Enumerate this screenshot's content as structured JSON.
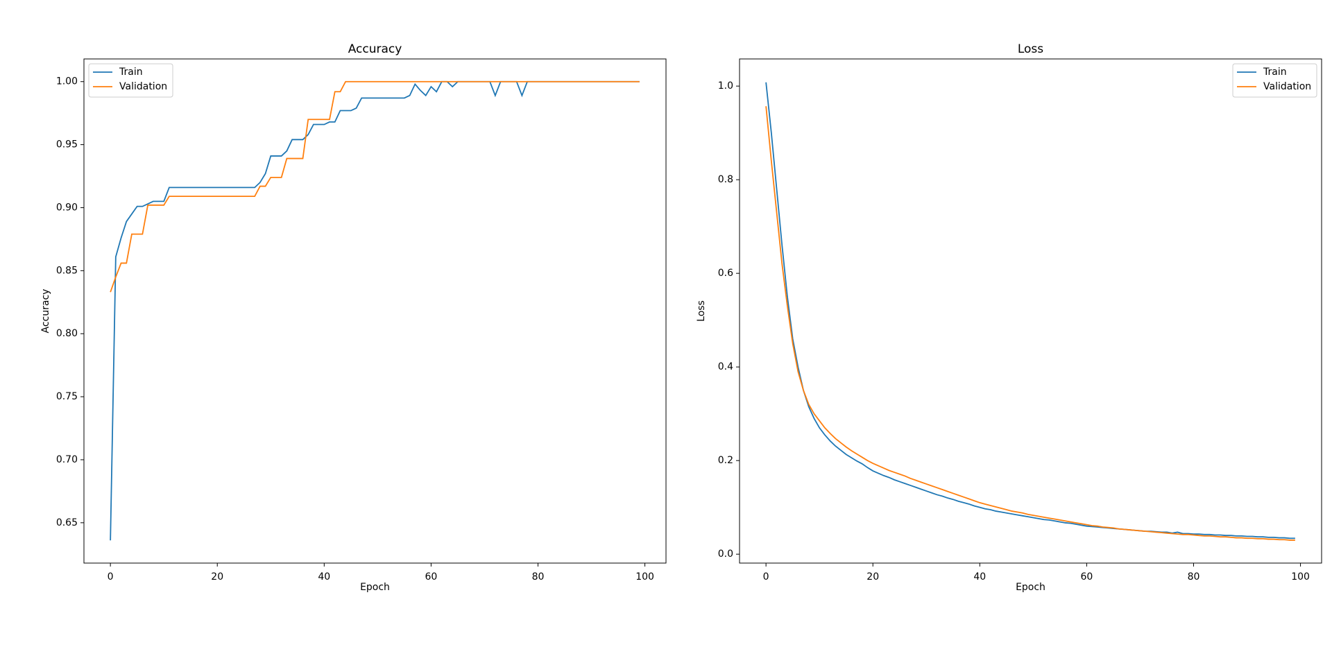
{
  "chart_data": [
    {
      "type": "line",
      "title": "Accuracy",
      "xlabel": "Epoch",
      "ylabel": "Accuracy",
      "x": [
        0,
        1,
        2,
        3,
        4,
        5,
        6,
        7,
        8,
        9,
        10,
        11,
        12,
        13,
        14,
        15,
        16,
        17,
        18,
        19,
        20,
        21,
        22,
        23,
        24,
        25,
        26,
        27,
        28,
        29,
        30,
        31,
        32,
        33,
        34,
        35,
        36,
        37,
        38,
        39,
        40,
        41,
        42,
        43,
        44,
        45,
        46,
        47,
        48,
        49,
        50,
        51,
        52,
        53,
        54,
        55,
        56,
        57,
        58,
        59,
        60,
        61,
        62,
        63,
        64,
        65,
        66,
        67,
        68,
        69,
        70,
        71,
        72,
        73,
        74,
        75,
        76,
        77,
        78,
        79,
        80,
        81,
        82,
        83,
        84,
        85,
        86,
        87,
        88,
        89,
        90,
        91,
        92,
        93,
        94,
        95,
        96,
        97,
        98,
        99
      ],
      "series": [
        {
          "name": "Train",
          "color": "#1f77b4",
          "values": [
            0.636,
            0.861,
            0.876,
            0.889,
            0.895,
            0.901,
            0.901,
            0.903,
            0.905,
            0.905,
            0.905,
            0.916,
            0.916,
            0.916,
            0.916,
            0.916,
            0.916,
            0.916,
            0.916,
            0.916,
            0.916,
            0.916,
            0.916,
            0.916,
            0.916,
            0.916,
            0.916,
            0.916,
            0.92,
            0.927,
            0.941,
            0.941,
            0.941,
            0.945,
            0.954,
            0.954,
            0.954,
            0.958,
            0.966,
            0.966,
            0.966,
            0.968,
            0.968,
            0.977,
            0.977,
            0.977,
            0.979,
            0.987,
            0.987,
            0.987,
            0.987,
            0.987,
            0.987,
            0.987,
            0.987,
            0.987,
            0.989,
            0.998,
            0.993,
            0.989,
            0.996,
            0.992,
            1.0,
            1.0,
            0.996,
            1.0,
            1.0,
            1.0,
            1.0,
            1.0,
            1.0,
            1.0,
            0.989,
            1.0,
            1.0,
            1.0,
            1.0,
            0.989,
            1.0,
            1.0,
            1.0,
            1.0,
            1.0,
            1.0,
            1.0,
            1.0,
            1.0,
            1.0,
            1.0,
            1.0,
            1.0,
            1.0,
            1.0,
            1.0,
            1.0,
            1.0,
            1.0,
            1.0,
            1.0,
            1.0
          ]
        },
        {
          "name": "Validation",
          "color": "#ff7f0e",
          "values": [
            0.833,
            0.845,
            0.856,
            0.856,
            0.879,
            0.879,
            0.879,
            0.902,
            0.902,
            0.902,
            0.902,
            0.909,
            0.909,
            0.909,
            0.909,
            0.909,
            0.909,
            0.909,
            0.909,
            0.909,
            0.909,
            0.909,
            0.909,
            0.909,
            0.909,
            0.909,
            0.909,
            0.909,
            0.917,
            0.917,
            0.924,
            0.924,
            0.924,
            0.939,
            0.939,
            0.939,
            0.939,
            0.97,
            0.97,
            0.97,
            0.97,
            0.97,
            0.992,
            0.992,
            1.0,
            1.0,
            1.0,
            1.0,
            1.0,
            1.0,
            1.0,
            1.0,
            1.0,
            1.0,
            1.0,
            1.0,
            1.0,
            1.0,
            1.0,
            1.0,
            1.0,
            1.0,
            1.0,
            1.0,
            1.0,
            1.0,
            1.0,
            1.0,
            1.0,
            1.0,
            1.0,
            1.0,
            1.0,
            1.0,
            1.0,
            1.0,
            1.0,
            1.0,
            1.0,
            1.0,
            1.0,
            1.0,
            1.0,
            1.0,
            1.0,
            1.0,
            1.0,
            1.0,
            1.0,
            1.0,
            1.0,
            1.0,
            1.0,
            1.0,
            1.0,
            1.0,
            1.0,
            1.0,
            1.0,
            1.0
          ]
        }
      ],
      "xlim": [
        -4.95,
        103.95
      ],
      "ylim": [
        0.618,
        1.018
      ],
      "xticks": [
        0,
        20,
        40,
        60,
        80,
        100
      ],
      "yticks": [
        0.65,
        {
          "value": 0.7,
          "label": "0.70"
        },
        0.75,
        {
          "value": 0.8,
          "label": "0.80"
        },
        0.85,
        {
          "value": 0.9,
          "label": "0.90"
        },
        0.95,
        {
          "value": 1.0,
          "label": "1.00"
        }
      ],
      "legend": "upper left"
    },
    {
      "type": "line",
      "title": "Loss",
      "xlabel": "Epoch",
      "ylabel": "Loss",
      "x": [
        0,
        1,
        2,
        3,
        4,
        5,
        6,
        7,
        8,
        9,
        10,
        11,
        12,
        13,
        14,
        15,
        16,
        17,
        18,
        19,
        20,
        21,
        22,
        23,
        24,
        25,
        26,
        27,
        28,
        29,
        30,
        31,
        32,
        33,
        34,
        35,
        36,
        37,
        38,
        39,
        40,
        41,
        42,
        43,
        44,
        45,
        46,
        47,
        48,
        49,
        50,
        51,
        52,
        53,
        54,
        55,
        56,
        57,
        58,
        59,
        60,
        61,
        62,
        63,
        64,
        65,
        66,
        67,
        68,
        69,
        70,
        71,
        72,
        73,
        74,
        75,
        76,
        77,
        78,
        79,
        80,
        81,
        82,
        83,
        84,
        85,
        86,
        87,
        88,
        89,
        90,
        91,
        92,
        93,
        94,
        95,
        96,
        97,
        98,
        99
      ],
      "series": [
        {
          "name": "Train",
          "color": "#1f77b4",
          "values": [
            1.008,
            0.9,
            0.78,
            0.66,
            0.55,
            0.46,
            0.4,
            0.35,
            0.315,
            0.29,
            0.27,
            0.255,
            0.242,
            0.231,
            0.222,
            0.213,
            0.206,
            0.199,
            0.193,
            0.185,
            0.178,
            0.173,
            0.168,
            0.164,
            0.159,
            0.155,
            0.151,
            0.147,
            0.143,
            0.139,
            0.135,
            0.131,
            0.127,
            0.124,
            0.12,
            0.117,
            0.113,
            0.11,
            0.107,
            0.103,
            0.1,
            0.097,
            0.095,
            0.092,
            0.09,
            0.088,
            0.086,
            0.084,
            0.082,
            0.08,
            0.078,
            0.076,
            0.074,
            0.073,
            0.071,
            0.069,
            0.067,
            0.066,
            0.064,
            0.062,
            0.06,
            0.059,
            0.058,
            0.057,
            0.056,
            0.055,
            0.054,
            0.053,
            0.052,
            0.051,
            0.05,
            0.049,
            0.049,
            0.048,
            0.047,
            0.047,
            0.045,
            0.047,
            0.044,
            0.044,
            0.043,
            0.043,
            0.042,
            0.042,
            0.041,
            0.041,
            0.04,
            0.04,
            0.039,
            0.039,
            0.038,
            0.038,
            0.037,
            0.037,
            0.036,
            0.036,
            0.035,
            0.035,
            0.034,
            0.034
          ]
        },
        {
          "name": "Validation",
          "color": "#ff7f0e",
          "values": [
            0.957,
            0.84,
            0.73,
            0.62,
            0.53,
            0.45,
            0.39,
            0.35,
            0.32,
            0.3,
            0.285,
            0.27,
            0.258,
            0.247,
            0.238,
            0.229,
            0.221,
            0.214,
            0.207,
            0.2,
            0.194,
            0.189,
            0.184,
            0.179,
            0.175,
            0.171,
            0.167,
            0.162,
            0.158,
            0.154,
            0.15,
            0.146,
            0.142,
            0.138,
            0.134,
            0.13,
            0.126,
            0.122,
            0.118,
            0.114,
            0.11,
            0.107,
            0.104,
            0.101,
            0.098,
            0.095,
            0.092,
            0.09,
            0.088,
            0.085,
            0.083,
            0.081,
            0.079,
            0.077,
            0.075,
            0.073,
            0.071,
            0.069,
            0.067,
            0.065,
            0.063,
            0.061,
            0.06,
            0.058,
            0.057,
            0.056,
            0.054,
            0.053,
            0.052,
            0.051,
            0.05,
            0.049,
            0.048,
            0.047,
            0.046,
            0.045,
            0.044,
            0.043,
            0.042,
            0.042,
            0.041,
            0.04,
            0.039,
            0.039,
            0.038,
            0.037,
            0.037,
            0.036,
            0.035,
            0.035,
            0.034,
            0.034,
            0.033,
            0.033,
            0.032,
            0.032,
            0.031,
            0.031,
            0.03,
            0.03
          ]
        }
      ],
      "xlim": [
        -4.95,
        103.95
      ],
      "ylim": [
        -0.019,
        1.058
      ],
      "xticks": [
        0,
        20,
        40,
        60,
        80,
        100
      ],
      "yticks": [
        {
          "value": 0,
          "label": "0.0"
        },
        0.2,
        0.4,
        0.6,
        0.8,
        {
          "value": 1.0,
          "label": "1.0"
        }
      ],
      "legend": "upper right"
    }
  ]
}
